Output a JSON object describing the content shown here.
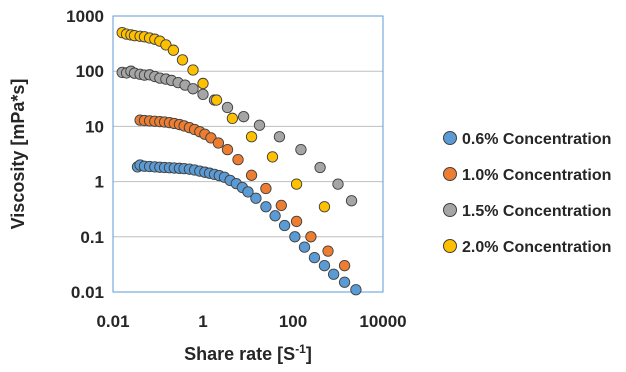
{
  "chart_data": {
    "type": "scatter",
    "title": "",
    "xlabel": {
      "main": "Share rate [S",
      "sup": "-1",
      "end": "]"
    },
    "ylabel": "Viscosity [mPa*s]",
    "xscale": "log",
    "yscale": "log",
    "xlim": [
      0.01,
      10000
    ],
    "ylim": [
      0.01,
      1000
    ],
    "x_ticks": [
      0.01,
      1,
      100,
      10000
    ],
    "x_tick_labels": [
      "0.01",
      "1",
      "100",
      "10000"
    ],
    "y_ticks": [
      0.01,
      0.1,
      1,
      10,
      100,
      1000
    ],
    "y_tick_labels": [
      "0.01",
      "0.1",
      "1",
      "10",
      "100",
      "1000"
    ],
    "grid": "horizontal major gridlines",
    "legend_position": "right",
    "series": [
      {
        "name": "0.6% Concentration",
        "color": "#5b9bd5",
        "x": [
          0.035,
          0.04,
          0.05,
          0.065,
          0.085,
          0.11,
          0.14,
          0.18,
          0.23,
          0.3,
          0.38,
          0.5,
          0.65,
          0.85,
          1.1,
          1.4,
          1.8,
          2.3,
          3,
          4,
          5.5,
          7.5,
          10,
          15,
          25,
          40,
          65,
          110,
          180,
          300,
          500,
          800,
          1400,
          2500
        ],
        "y": [
          1.85,
          2.0,
          1.9,
          1.88,
          1.85,
          1.82,
          1.8,
          1.78,
          1.76,
          1.74,
          1.72,
          1.68,
          1.62,
          1.55,
          1.48,
          1.42,
          1.35,
          1.28,
          1.2,
          1.05,
          0.92,
          0.78,
          0.65,
          0.5,
          0.35,
          0.24,
          0.16,
          0.1,
          0.065,
          0.042,
          0.03,
          0.021,
          0.015,
          0.011
        ]
      },
      {
        "name": "1.0% Concentration",
        "color": "#ed7d31",
        "x": [
          0.04,
          0.05,
          0.065,
          0.085,
          0.11,
          0.14,
          0.18,
          0.23,
          0.3,
          0.38,
          0.5,
          0.65,
          0.85,
          1.1,
          1.5,
          2.2,
          3.5,
          6,
          12,
          25,
          55,
          120,
          250,
          600,
          1400
        ],
        "y": [
          13,
          12.8,
          12.6,
          12.4,
          12.2,
          12,
          11.7,
          11.3,
          10.8,
          10.2,
          9.5,
          8.8,
          8.0,
          7.2,
          6.2,
          5.0,
          3.8,
          2.5,
          1.3,
          0.75,
          0.37,
          0.19,
          0.1,
          0.055,
          0.03
        ]
      },
      {
        "name": "1.5% Concentration",
        "color": "#a5a5a5",
        "x": [
          0.016,
          0.02,
          0.025,
          0.03,
          0.04,
          0.05,
          0.065,
          0.085,
          0.11,
          0.15,
          0.2,
          0.28,
          0.4,
          0.6,
          1.0,
          1.8,
          3.5,
          8,
          18,
          50,
          150,
          400,
          1000,
          2000
        ],
        "y": [
          95,
          93,
          100,
          92,
          88,
          85,
          86,
          80,
          75,
          72,
          68,
          62,
          56,
          48,
          38,
          30,
          22,
          15,
          10.5,
          6.5,
          3.8,
          1.8,
          0.9,
          0.45
        ]
      },
      {
        "name": "2.0% Concentration",
        "color": "#ffc000",
        "x": [
          0.016,
          0.02,
          0.025,
          0.03,
          0.04,
          0.05,
          0.065,
          0.085,
          0.11,
          0.15,
          0.22,
          0.35,
          0.6,
          1.0,
          2.0,
          4.5,
          12,
          35,
          120,
          500
        ],
        "y": [
          500,
          470,
          455,
          440,
          430,
          420,
          400,
          380,
          350,
          300,
          240,
          160,
          105,
          60,
          30,
          14,
          6.5,
          2.8,
          0.9,
          0.35
        ]
      }
    ]
  }
}
